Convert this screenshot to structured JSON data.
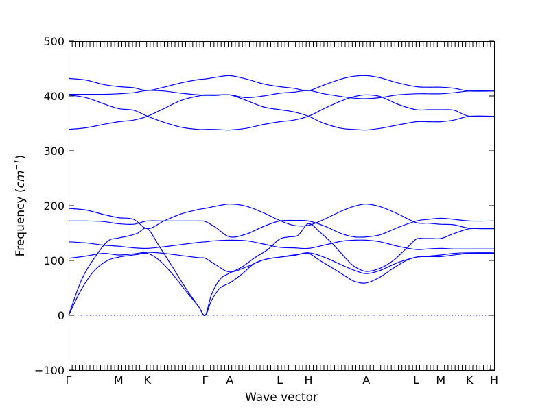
{
  "chart_data": {
    "type": "line",
    "xlabel": "Wave vector",
    "ylabel": "Frequency (cm⁻¹)",
    "ylabel_prefix": "Frequency (",
    "ylabel_unit": "cm",
    "ylabel_exp": "−1",
    "ylabel_suffix": ")",
    "ylim": [
      -100,
      500
    ],
    "y_ticks": [
      -100,
      0,
      100,
      200,
      300,
      400,
      500
    ],
    "x_ticks": [
      {
        "label": "Γ",
        "x": 0
      },
      {
        "label": "M",
        "x": 0.577
      },
      {
        "label": "K",
        "x": 0.91
      },
      {
        "label": "Γ",
        "x": 1.577
      },
      {
        "label": "A",
        "x": 1.86
      },
      {
        "label": "L",
        "x": 2.437
      },
      {
        "label": "H",
        "x": 2.77
      },
      {
        "label": "A",
        "x": 3.437
      },
      {
        "label": "L",
        "x": 4.014
      },
      {
        "label": "M",
        "x": 4.297
      },
      {
        "label": "K",
        "x": 4.63
      },
      {
        "label": "H",
        "x": 4.913
      }
    ],
    "xlim": [
      0,
      4.913
    ],
    "zero_line": true,
    "colors": {
      "bands": "#0000ff",
      "axes": "#000000"
    },
    "series": [
      {
        "x": [
          0,
          0.15,
          0.3,
          0.45,
          0.577,
          0.7,
          0.8,
          0.91,
          1.05,
          1.2,
          1.35,
          1.5,
          1.577,
          1.65,
          1.75,
          1.86,
          2.0,
          2.15,
          2.3,
          2.437,
          2.55,
          2.65,
          2.77,
          2.9,
          3.05,
          3.2,
          3.3,
          3.437,
          3.6,
          3.75,
          3.9,
          4.014,
          4.1,
          4.2,
          4.297,
          4.4,
          4.5,
          4.63,
          4.75,
          4.85,
          4.913
        ],
        "y": [
          0,
          48,
          82,
          100,
          106,
          109,
          111,
          113,
          100,
          75,
          45,
          16,
          0,
          27,
          50,
          59,
          75,
          95,
          103,
          106,
          109,
          111,
          113,
          100,
          86,
          71,
          62,
          59,
          70,
          86,
          100,
          106,
          107,
          107,
          107,
          109,
          111,
          113,
          113,
          113,
          113
        ]
      },
      {
        "x": [
          0,
          0.15,
          0.3,
          0.45,
          0.577,
          0.7,
          0.8,
          0.91,
          1.05,
          1.2,
          1.35,
          1.5,
          1.577,
          1.65,
          1.75,
          1.86,
          2.0,
          2.15,
          2.3,
          2.437,
          2.55,
          2.65,
          2.77,
          2.9,
          3.05,
          3.2,
          3.3,
          3.437,
          3.6,
          3.75,
          3.9,
          4.014,
          4.1,
          4.2,
          4.297,
          4.4,
          4.5,
          4.63,
          4.75,
          4.85,
          4.913
        ],
        "y": [
          0,
          65,
          105,
          135,
          141,
          145,
          150,
          158,
          125,
          88,
          50,
          16,
          0,
          38,
          66,
          77,
          88,
          105,
          120,
          139,
          143,
          146,
          167,
          152,
          130,
          104,
          89,
          80,
          86,
          100,
          122,
          139,
          140,
          140,
          140,
          146,
          152,
          158,
          158,
          158,
          158
        ]
      },
      {
        "x": [
          0,
          0.2,
          0.4,
          0.577,
          0.75,
          0.91,
          1.1,
          1.3,
          1.5,
          1.577,
          1.7,
          1.86,
          2.05,
          2.25,
          2.437,
          2.6,
          2.77,
          2.95,
          3.15,
          3.3,
          3.437,
          3.6,
          3.8,
          4.014,
          4.15,
          4.297,
          4.45,
          4.63,
          4.913
        ],
        "y": [
          104,
          108,
          113,
          110,
          112,
          115,
          113,
          109,
          105,
          104,
          92,
          79,
          88,
          101,
          106,
          109,
          114,
          106,
          92,
          82,
          76,
          82,
          96,
          106,
          108,
          110,
          113,
          114,
          114
        ]
      },
      {
        "x": [
          0,
          0.2,
          0.4,
          0.577,
          0.75,
          0.91,
          1.1,
          1.3,
          1.5,
          1.577,
          1.7,
          1.86,
          2.05,
          2.25,
          2.437,
          2.6,
          2.77,
          2.95,
          3.15,
          3.3,
          3.437,
          3.6,
          3.8,
          4.014,
          4.15,
          4.297,
          4.45,
          4.63,
          4.913
        ],
        "y": [
          134,
          132,
          128,
          126,
          123,
          122,
          125,
          129,
          133,
          134,
          136,
          137,
          136,
          130,
          124,
          123,
          122,
          128,
          135,
          137,
          137,
          134,
          126,
          120,
          121,
          122,
          121,
          121,
          121
        ]
      },
      {
        "x": [
          0,
          0.2,
          0.4,
          0.577,
          0.75,
          0.91,
          1.1,
          1.3,
          1.5,
          1.577,
          1.7,
          1.86,
          2.05,
          2.25,
          2.437,
          2.6,
          2.77,
          2.95,
          3.15,
          3.3,
          3.437,
          3.6,
          3.8,
          4.014,
          4.15,
          4.297,
          4.45,
          4.63,
          4.913
        ],
        "y": [
          172,
          172,
          171,
          167,
          166,
          172,
          172,
          172,
          172,
          171,
          160,
          143,
          148,
          162,
          172,
          173,
          172,
          163,
          149,
          143,
          143,
          147,
          160,
          172,
          175,
          177,
          175,
          172,
          172
        ]
      },
      {
        "x": [
          0,
          0.2,
          0.4,
          0.577,
          0.75,
          0.91,
          1.1,
          1.3,
          1.5,
          1.577,
          1.7,
          1.86,
          2.05,
          2.25,
          2.437,
          2.6,
          2.77,
          2.95,
          3.15,
          3.3,
          3.437,
          3.6,
          3.8,
          4.014,
          4.15,
          4.297,
          4.45,
          4.63,
          4.913
        ],
        "y": [
          195,
          192,
          184,
          178,
          175,
          158,
          172,
          185,
          193,
          195,
          199,
          203,
          199,
          187,
          173,
          164,
          164,
          175,
          190,
          199,
          203,
          198,
          185,
          169,
          168,
          166,
          165,
          159,
          159
        ]
      },
      {
        "x": [
          0,
          0.2,
          0.4,
          0.577,
          0.75,
          0.91,
          1.1,
          1.3,
          1.5,
          1.577,
          1.7,
          1.86,
          2.05,
          2.25,
          2.437,
          2.6,
          2.77,
          2.95,
          3.15,
          3.3,
          3.437,
          3.6,
          3.8,
          4.014,
          4.15,
          4.297,
          4.45,
          4.63,
          4.913
        ],
        "y": [
          339,
          342,
          348,
          353,
          356,
          363,
          377,
          392,
          400,
          401,
          401,
          402,
          392,
          380,
          375,
          371,
          363,
          350,
          341,
          339,
          338,
          341,
          347,
          353,
          353,
          353,
          356,
          363,
          363
        ]
      },
      {
        "x": [
          0,
          0.2,
          0.4,
          0.577,
          0.75,
          0.91,
          1.1,
          1.3,
          1.5,
          1.577,
          1.7,
          1.86,
          2.05,
          2.25,
          2.437,
          2.6,
          2.77,
          2.95,
          3.15,
          3.3,
          3.437,
          3.6,
          3.8,
          4.014,
          4.15,
          4.297,
          4.45,
          4.63,
          4.913
        ],
        "y": [
          402,
          397,
          386,
          377,
          374,
          363,
          352,
          343,
          339,
          339,
          339,
          338,
          341,
          348,
          353,
          356,
          363,
          377,
          391,
          399,
          402,
          399,
          385,
          375,
          375,
          375,
          374,
          363,
          363
        ]
      },
      {
        "x": [
          0,
          0.2,
          0.4,
          0.577,
          0.75,
          0.91,
          1.1,
          1.3,
          1.5,
          1.577,
          1.7,
          1.86,
          2.05,
          2.25,
          2.437,
          2.6,
          2.77,
          2.95,
          3.15,
          3.3,
          3.437,
          3.6,
          3.8,
          4.014,
          4.15,
          4.297,
          4.45,
          4.63,
          4.913
        ],
        "y": [
          403,
          403,
          403,
          404,
          406,
          410,
          409,
          405,
          402,
          402,
          402,
          402,
          397,
          400,
          405,
          407,
          410,
          404,
          399,
          396,
          395,
          397,
          402,
          404,
          404,
          404,
          406,
          409,
          409
        ]
      },
      {
        "x": [
          0,
          0.2,
          0.4,
          0.577,
          0.75,
          0.91,
          1.1,
          1.3,
          1.5,
          1.577,
          1.7,
          1.86,
          2.05,
          2.25,
          2.437,
          2.6,
          2.77,
          2.95,
          3.15,
          3.3,
          3.437,
          3.6,
          3.8,
          4.014,
          4.15,
          4.297,
          4.45,
          4.63,
          4.913
        ],
        "y": [
          432,
          429,
          421,
          417,
          415,
          410,
          416,
          424,
          430,
          431,
          434,
          437,
          431,
          422,
          417,
          414,
          410,
          420,
          431,
          436,
          437,
          433,
          424,
          417,
          416,
          416,
          414,
          409,
          409
        ]
      }
    ]
  }
}
